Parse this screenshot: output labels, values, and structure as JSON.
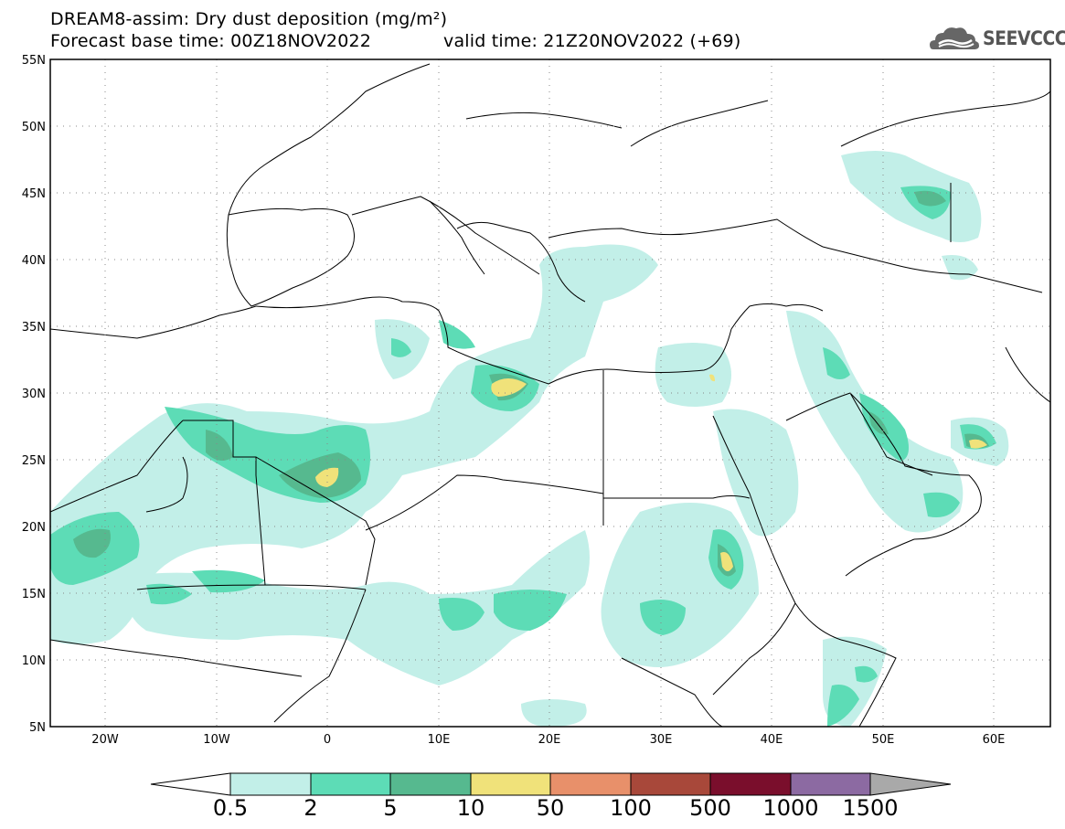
{
  "header": {
    "title": "DREAM8-assim: Dry dust deposition (mg/m²)",
    "base_time": "Forecast base time: 00Z18NOV2022",
    "valid_time": "valid time: 21Z20NOV2022 (+69)"
  },
  "logo": {
    "text": "SEEVCCC",
    "icon": "cloud-icon"
  },
  "map": {
    "lat_labels": [
      "55N",
      "50N",
      "45N",
      "40N",
      "35N",
      "30N",
      "25N",
      "20N",
      "15N",
      "10N",
      "5N"
    ],
    "lon_labels": [
      "20W",
      "10W",
      "0",
      "10E",
      "20E",
      "30E",
      "40E",
      "50E",
      "60E"
    ],
    "lon_range": [
      -25,
      65
    ],
    "lat_range": [
      5,
      55
    ],
    "grid": "dotted"
  },
  "colorbar": {
    "labels": [
      "0.5",
      "2",
      "5",
      "10",
      "50",
      "100",
      "500",
      "1000",
      "1500"
    ],
    "colors": [
      "#c2efe8",
      "#5ddcb6",
      "#56b98f",
      "#f0e27a",
      "#e8906a",
      "#a8483a",
      "#7a0e2c",
      "#8c6aa2",
      "#a9a9a9"
    ],
    "extend_left_color": "#ffffff",
    "extend_right_color": "#a9a9a9"
  }
}
